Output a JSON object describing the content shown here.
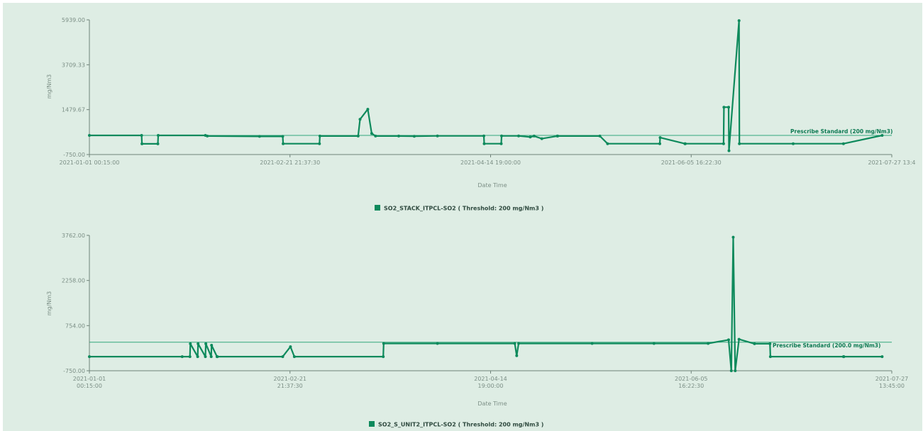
{
  "colors": {
    "background": "#deede4",
    "series": "#0e8a5c",
    "threshold_line": "#33a77b",
    "axis": "#6f8279",
    "tick_text": "#7c8f86"
  },
  "chart_data": [
    {
      "type": "line",
      "ylabel": "mg/Nm3",
      "xlabel": "Date Time",
      "y_ticks": [
        "-750.00",
        "1479.67",
        "3709.33",
        "5939.00"
      ],
      "ylim": [
        -750,
        5939
      ],
      "x_ticks": [
        "2021-01-01 00:15:00",
        "2021-02-21 21:37:30",
        "2021-04-14 19:00:00",
        "2021-06-05 16:22:30",
        "2021-07-27 13:4"
      ],
      "x_range_days": [
        0,
        207.5
      ],
      "threshold": {
        "value": 200,
        "label": "Prescribe Standard (200 mg/Nm3)"
      },
      "legend": "SO2_STACK_ITPCL-SO2 ( Threshold: 200 mg/Nm3 )",
      "series": [
        {
          "name": "SO2_STACK_ITPCL-SO2",
          "x": [
            0,
            13.5,
            13.6,
            17.7,
            17.8,
            30,
            30.5,
            44,
            50,
            50.1,
            59.5,
            59.6,
            69.5,
            70,
            72,
            73,
            74,
            80,
            84,
            90,
            102,
            102.1,
            106.5,
            106.6,
            111,
            114,
            115,
            117,
            121,
            121.1,
            132,
            134,
            147.5,
            147.6,
            154,
            154.1,
            164,
            164.1,
            165.3,
            165.4,
            168,
            168.1,
            182,
            195,
            205
          ],
          "y": [
            200,
            200,
            -220,
            -220,
            200,
            200,
            170,
            150,
            150,
            -210,
            -210,
            170,
            170,
            1000,
            1500,
            300,
            170,
            170,
            160,
            175,
            175,
            -210,
            -210,
            175,
            175,
            120,
            170,
            40,
            170,
            170,
            170,
            -210,
            -210,
            90,
            -210,
            -210,
            -210,
            1600,
            1600,
            -560,
            5900,
            -210,
            -210,
            -210,
            200
          ]
        }
      ]
    },
    {
      "type": "line",
      "ylabel": "mg/Nm3",
      "xlabel": "Date Time",
      "y_ticks": [
        "-750.00",
        "754.00",
        "2258.00",
        "3762.00"
      ],
      "ylim": [
        -750,
        3762
      ],
      "x_ticks": [
        "2021-01-01\n00:15:00",
        "2021-02-21\n21:37:30",
        "2021-04-14\n19:00:00",
        "2021-06-05\n16:22:30",
        "2021-07-27\n13:45:00"
      ],
      "x_range_days": [
        0,
        207.5
      ],
      "threshold": {
        "value": 200,
        "label": "Prescribe Standard (200.0 mg/Nm3)"
      },
      "legend": "SO2_S_UNIT2_ITPCL-SO2 ( Threshold: 200 mg/Nm3 )",
      "series": [
        {
          "name": "SO2_S_UNIT2_ITPCL-SO2",
          "x": [
            0,
            24,
            26,
            26.1,
            28,
            28.1,
            30,
            30.1,
            31.5,
            31.6,
            33,
            33.1,
            50,
            52,
            53,
            76,
            76.1,
            90,
            110,
            110.5,
            111,
            130,
            146,
            160,
            165.3,
            166,
            166.5,
            167,
            168,
            172,
            176,
            176.1,
            195,
            195.1,
            205
          ],
          "y": [
            -280,
            -280,
            -280,
            150,
            -280,
            150,
            -280,
            150,
            -280,
            100,
            -280,
            -280,
            -280,
            50,
            -280,
            -280,
            160,
            160,
            160,
            -250,
            160,
            160,
            160,
            160,
            280,
            -750,
            3700,
            -750,
            300,
            150,
            150,
            -280,
            -280,
            -280,
            -280
          ]
        }
      ]
    }
  ]
}
